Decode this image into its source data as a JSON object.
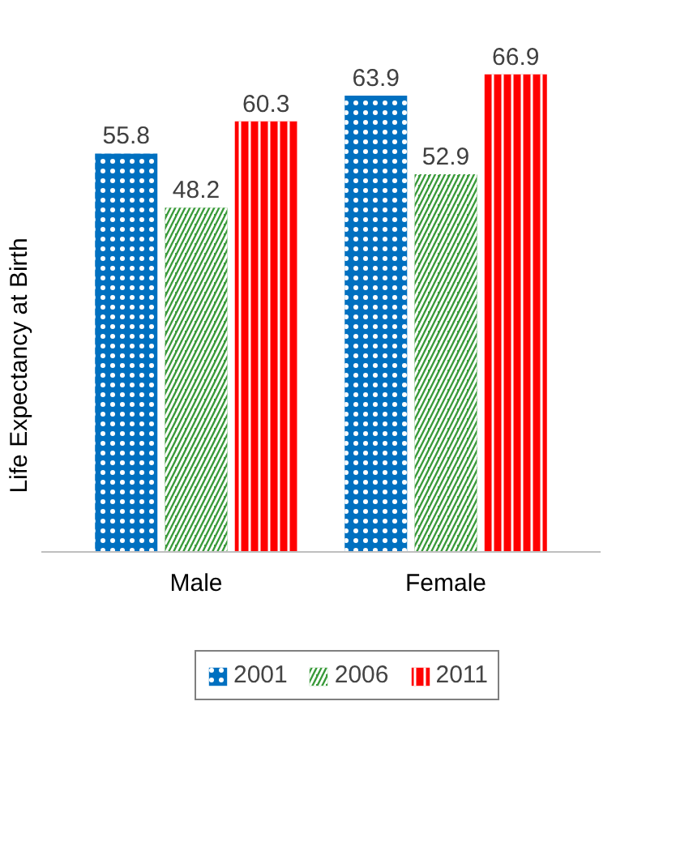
{
  "chart_data": {
    "type": "bar",
    "ylabel": "Life Expectancy at Birth",
    "categories": [
      "Male",
      "Female"
    ],
    "series": [
      {
        "name": "2001",
        "color": "#0070c0",
        "values": [
          55.8,
          63.9
        ]
      },
      {
        "name": "2006",
        "color": "#3a9a3a",
        "values": [
          48.2,
          52.9
        ]
      },
      {
        "name": "2011",
        "color": "#ff0000",
        "values": [
          60.3,
          66.9
        ]
      }
    ],
    "data_labels": true,
    "grid": false,
    "legend": "bottom"
  }
}
